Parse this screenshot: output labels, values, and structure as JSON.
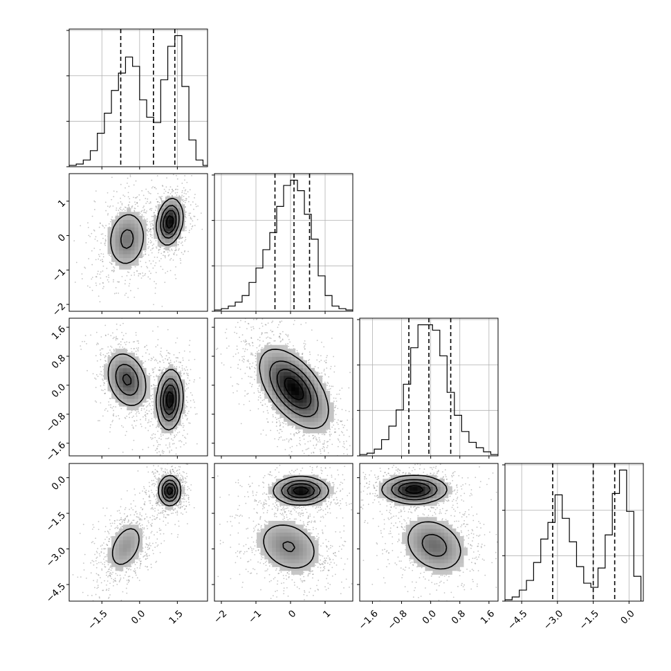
{
  "chart_data": {
    "type": "corner",
    "grid": true,
    "histograms": [
      {
        "param": 0,
        "bin_edges": [
          -2.8,
          -2.52,
          -2.24,
          -1.96,
          -1.68,
          -1.4,
          -1.12,
          -0.84,
          -0.56,
          -0.28,
          0.0,
          0.28,
          0.56,
          0.84,
          1.12,
          1.4,
          1.68,
          1.96,
          2.24,
          2.52,
          2.8
        ],
        "counts": [
          0.01,
          0.02,
          0.05,
          0.12,
          0.25,
          0.4,
          0.57,
          0.7,
          0.82,
          0.75,
          0.5,
          0.37,
          0.33,
          0.65,
          0.9,
          0.98,
          0.6,
          0.2,
          0.05,
          0.01
        ],
        "quantiles": [
          -0.75,
          0.55,
          1.4
        ]
      },
      {
        "param": 1,
        "bin_edges": [
          -2.2,
          -2.0,
          -1.8,
          -1.6,
          -1.4,
          -1.2,
          -1.0,
          -0.8,
          -0.6,
          -0.4,
          -0.2,
          0.0,
          0.2,
          0.4,
          0.6,
          0.8,
          1.0,
          1.2,
          1.4,
          1.6,
          1.8
        ],
        "counts": [
          0.01,
          0.02,
          0.04,
          0.07,
          0.12,
          0.22,
          0.33,
          0.47,
          0.6,
          0.8,
          0.96,
          1.0,
          0.92,
          0.74,
          0.55,
          0.27,
          0.12,
          0.04,
          0.02,
          0.01
        ],
        "quantiles": [
          -0.45,
          0.1,
          0.55
        ]
      },
      {
        "param": 2,
        "bin_edges": [
          -1.95,
          -1.75,
          -1.55,
          -1.35,
          -1.15,
          -0.95,
          -0.75,
          -0.55,
          -0.35,
          -0.15,
          0.05,
          0.25,
          0.45,
          0.65,
          0.85,
          1.05,
          1.25,
          1.45,
          1.65,
          1.85
        ],
        "counts": [
          0.01,
          0.02,
          0.05,
          0.12,
          0.22,
          0.34,
          0.53,
          0.8,
          0.97,
          0.97,
          0.93,
          0.74,
          0.47,
          0.3,
          0.18,
          0.1,
          0.06,
          0.03,
          0.01
        ],
        "quantiles": [
          -0.6,
          -0.05,
          0.55
        ]
      },
      {
        "param": 3,
        "bin_edges": [
          -5.2,
          -4.9,
          -4.6,
          -4.3,
          -4.0,
          -3.7,
          -3.4,
          -3.1,
          -2.8,
          -2.5,
          -2.2,
          -1.9,
          -1.6,
          -1.3,
          -1.0,
          -0.7,
          -0.4,
          -0.1,
          0.2,
          0.5
        ],
        "counts": [
          0.01,
          0.03,
          0.08,
          0.15,
          0.28,
          0.45,
          0.57,
          0.77,
          0.6,
          0.43,
          0.25,
          0.13,
          0.1,
          0.24,
          0.48,
          0.78,
          0.95,
          0.65,
          0.18
        ],
        "quantiles": [
          -3.2,
          -1.5,
          -0.6
        ]
      }
    ],
    "pairs": [
      {
        "x_param": 0,
        "y_param": 1,
        "modes": [
          {
            "x": -0.5,
            "y": -0.1,
            "sx": 0.42,
            "sy": 0.46,
            "rho": 0.1,
            "weight": 0.5
          },
          {
            "x": 1.2,
            "y": 0.4,
            "sx": 0.26,
            "sy": 0.34,
            "rho": 0.2,
            "weight": 0.5
          }
        ]
      },
      {
        "x_param": 0,
        "y_param": 2,
        "modes": [
          {
            "x": -0.5,
            "y": 0.15,
            "sx": 0.42,
            "sy": 0.4,
            "rho": -0.25,
            "weight": 0.5
          },
          {
            "x": 1.2,
            "y": -0.4,
            "sx": 0.26,
            "sy": 0.42,
            "rho": 0.1,
            "weight": 0.5
          }
        ]
      },
      {
        "x_param": 0,
        "y_param": 3,
        "modes": [
          {
            "x": -0.55,
            "y": -2.9,
            "sx": 0.42,
            "sy": 0.6,
            "rho": 0.4,
            "weight": 0.5
          },
          {
            "x": 1.2,
            "y": -0.55,
            "sx": 0.22,
            "sy": 0.32,
            "rho": 0.0,
            "weight": 0.5
          }
        ]
      },
      {
        "x_param": 1,
        "y_param": 2,
        "modes": [
          {
            "x": 0.1,
            "y": -0.1,
            "sx": 0.5,
            "sy": 0.55,
            "rho": -0.55,
            "weight": 1.0
          }
        ]
      },
      {
        "x_param": 1,
        "y_param": 3,
        "modes": [
          {
            "x": 0.3,
            "y": -0.55,
            "sx": 0.4,
            "sy": 0.3,
            "rho": 0.0,
            "weight": 0.5
          },
          {
            "x": -0.05,
            "y": -2.9,
            "sx": 0.5,
            "sy": 0.62,
            "rho": -0.25,
            "weight": 0.5
          }
        ]
      },
      {
        "x_param": 2,
        "y_param": 3,
        "modes": [
          {
            "x": -0.45,
            "y": -0.5,
            "sx": 0.45,
            "sy": 0.3,
            "rho": 0.0,
            "weight": 0.5
          },
          {
            "x": 0.1,
            "y": -2.85,
            "sx": 0.45,
            "sy": 0.62,
            "rho": -0.25,
            "weight": 0.5
          }
        ]
      }
    ],
    "x_axes": [
      {
        "param": 0,
        "range": [
          -2.8,
          2.7
        ],
        "ticks": [
          -1.5,
          0.0,
          1.5
        ],
        "tick_labels": [
          "−1.5",
          "0.0",
          "1.5"
        ]
      },
      {
        "param": 1,
        "range": [
          -2.2,
          1.8
        ],
        "ticks": [
          -2,
          -1,
          0,
          1
        ],
        "tick_labels": [
          "−2",
          "−1",
          "0",
          "1"
        ]
      },
      {
        "param": 2,
        "range": [
          -1.95,
          1.85
        ],
        "ticks": [
          -1.6,
          -0.8,
          0.0,
          0.8,
          1.6
        ],
        "tick_labels": [
          "−1.6",
          "−0.8",
          "0.0",
          "0.8",
          "1.6"
        ]
      },
      {
        "param": 3,
        "range": [
          -5.2,
          0.6
        ],
        "ticks": [
          -4.5,
          -3.0,
          -1.5,
          0.0
        ],
        "tick_labels": [
          "−4.5",
          "−3.0",
          "−1.5",
          "0.0"
        ]
      }
    ],
    "y_axes": [
      {
        "param": 1,
        "range": [
          -2.2,
          1.8
        ],
        "ticks": [
          -2,
          -1,
          0,
          1
        ],
        "tick_labels": [
          "−2",
          "−1",
          "0",
          "1"
        ]
      },
      {
        "param": 2,
        "range": [
          -1.95,
          1.85
        ],
        "ticks": [
          -1.6,
          -0.8,
          0.0,
          0.8,
          1.6
        ],
        "tick_labels": [
          "−1.6",
          "−0.8",
          "0.0",
          "0.8",
          "1.6"
        ]
      },
      {
        "param": 3,
        "range": [
          -5.2,
          0.6
        ],
        "ticks": [
          -4.5,
          -3.0,
          -1.5,
          0.0
        ],
        "tick_labels": [
          "−4.5",
          "−3.0",
          "−1.5",
          "0.0"
        ]
      }
    ]
  }
}
